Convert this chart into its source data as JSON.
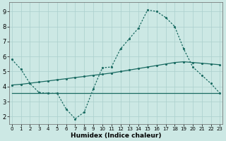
{
  "xlabel": "Humidex (Indice chaleur)",
  "background_color": "#cce8e4",
  "grid_color": "#aacfcc",
  "line_color": "#1a6b62",
  "x_ticks": [
    0,
    1,
    2,
    3,
    4,
    5,
    6,
    7,
    8,
    9,
    10,
    11,
    12,
    13,
    14,
    15,
    16,
    17,
    18,
    19,
    20,
    21,
    22,
    23
  ],
  "y_ticks": [
    2,
    3,
    4,
    5,
    6,
    7,
    8,
    9
  ],
  "ylim": [
    1.5,
    9.6
  ],
  "xlim": [
    -0.3,
    23.3
  ],
  "curve1_x": [
    0,
    1,
    2,
    3,
    4,
    5,
    6,
    7,
    8,
    9,
    10,
    11,
    12,
    13,
    14,
    15,
    16,
    17,
    18,
    19,
    20,
    21,
    22,
    23
  ],
  "curve1_y": [
    5.8,
    5.15,
    4.2,
    3.6,
    3.55,
    3.55,
    2.5,
    1.85,
    2.3,
    3.85,
    5.25,
    5.3,
    6.5,
    7.2,
    7.9,
    9.1,
    9.0,
    8.6,
    8.0,
    6.5,
    5.3,
    4.75,
    4.2,
    3.55
  ],
  "curve2_x": [
    0,
    1,
    2,
    3,
    4,
    5,
    6,
    7,
    8,
    9,
    10,
    11,
    12,
    13,
    14,
    15,
    16,
    17,
    18,
    19,
    20,
    21,
    22,
    23
  ],
  "curve2_y": [
    4.1,
    4.15,
    4.22,
    4.3,
    4.37,
    4.45,
    4.52,
    4.6,
    4.67,
    4.75,
    4.82,
    4.9,
    5.0,
    5.1,
    5.2,
    5.3,
    5.4,
    5.5,
    5.6,
    5.65,
    5.6,
    5.55,
    5.5,
    5.45
  ],
  "curve3_x": [
    0,
    23
  ],
  "curve3_y": [
    3.55,
    3.55
  ]
}
